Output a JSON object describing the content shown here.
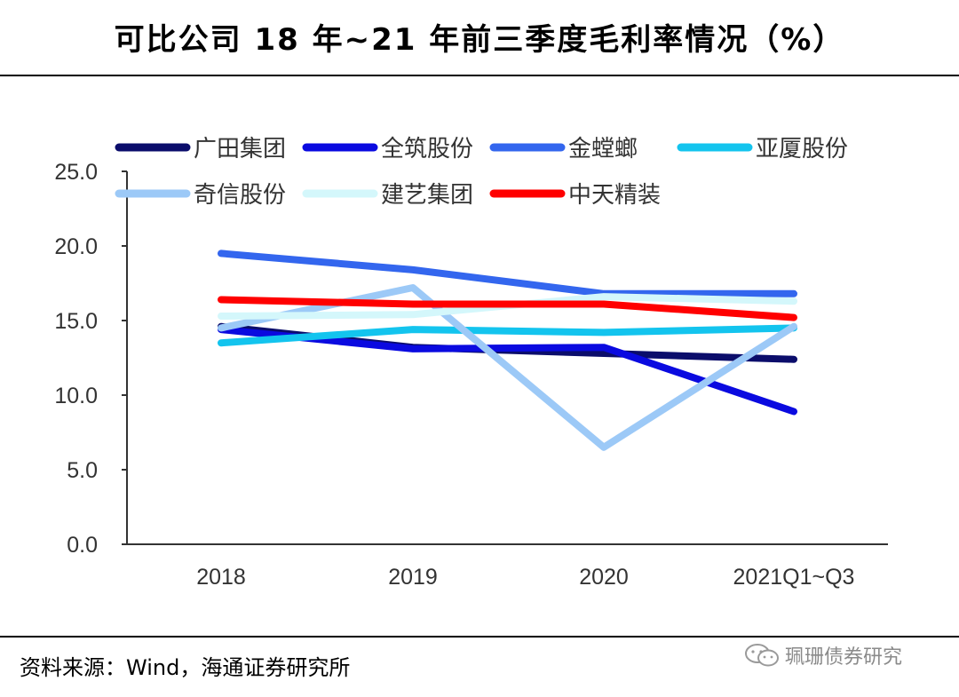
{
  "header": {
    "title": "可比公司 18 年~21 年前三季度毛利率情况（%）"
  },
  "footer": {
    "source": "资料来源：Wind，海通证券研究所",
    "watermark": "珮珊债券研究"
  },
  "chart_data": {
    "type": "line",
    "title": "可比公司 18 年~21 年前三季度毛利率情况（%）",
    "xlabel": "",
    "ylabel": "",
    "categories": [
      "2018",
      "2019",
      "2020",
      "2021Q1~Q3"
    ],
    "ylim": [
      0,
      25
    ],
    "yticks": [
      "0.0",
      "5.0",
      "10.0",
      "15.0",
      "20.0",
      "25.0"
    ],
    "legend_position": "top",
    "series": [
      {
        "name": "广田集团",
        "color": "#0b0d6b",
        "values": [
          14.6,
          13.2,
          12.8,
          12.4
        ]
      },
      {
        "name": "全筑股份",
        "color": "#0a0ae0",
        "values": [
          14.4,
          13.1,
          13.2,
          8.9
        ]
      },
      {
        "name": "金螳螂",
        "color": "#3366ee",
        "values": [
          19.5,
          18.4,
          16.8,
          16.8
        ]
      },
      {
        "name": "亚厦股份",
        "color": "#13c4ee",
        "values": [
          13.5,
          14.4,
          14.2,
          14.5
        ]
      },
      {
        "name": "奇信股份",
        "color": "#9cc9f7",
        "values": [
          14.5,
          17.2,
          6.5,
          14.6
        ]
      },
      {
        "name": "建艺集团",
        "color": "#d4f7fb",
        "values": [
          15.3,
          15.4,
          16.6,
          16.3
        ]
      },
      {
        "name": "中天精装",
        "color": "#ff0000",
        "values": [
          16.4,
          16.1,
          16.1,
          15.2
        ]
      }
    ]
  }
}
